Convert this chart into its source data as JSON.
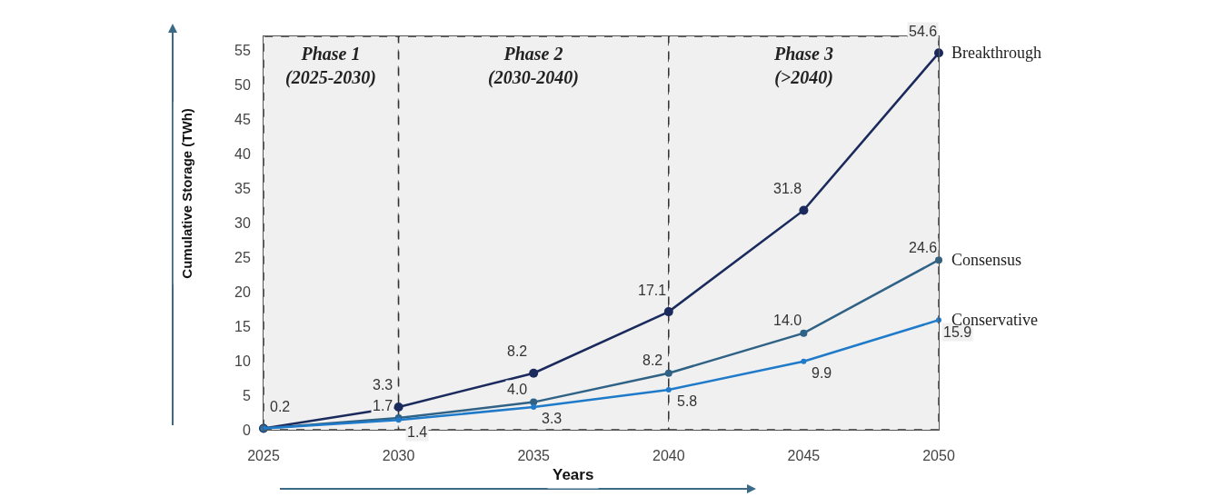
{
  "chart_data": {
    "type": "line",
    "xlabel": "Years",
    "ylabel": "Cumulative Storage (TWh)",
    "x": [
      2025,
      2030,
      2035,
      2040,
      2045,
      2050
    ],
    "xlim": [
      2025,
      2050
    ],
    "xticks": [
      2025,
      2030,
      2035,
      2040,
      2045,
      2050
    ],
    "ylim": [
      0,
      57
    ],
    "yticks": [
      0,
      5,
      10,
      15,
      20,
      25,
      30,
      35,
      40,
      45,
      50,
      55
    ],
    "grid": false,
    "legend": false,
    "marker": "circle",
    "line_style": "solid",
    "series": [
      {
        "name": "Breakthrough",
        "color": "#1b2a5c",
        "values": [
          0.2,
          3.3,
          8.2,
          17.1,
          31.8,
          54.6
        ],
        "value_labels": [
          "0.2",
          "3.3",
          "8.2",
          "17.1",
          "31.8",
          "54.6"
        ]
      },
      {
        "name": "Consensus",
        "color": "#2f6285",
        "values": [
          0.2,
          1.7,
          4.0,
          8.2,
          14.0,
          24.6
        ],
        "value_labels": [
          null,
          "1.7",
          "4.0",
          "8.2",
          "14.0",
          "24.6"
        ]
      },
      {
        "name": "Conservative",
        "color": "#1f7bc9",
        "values": [
          0.2,
          1.4,
          3.3,
          5.8,
          9.9,
          15.9
        ],
        "value_labels": [
          null,
          "1.4",
          "3.3",
          "5.8",
          "9.9",
          "15.9"
        ]
      }
    ],
    "bands": [
      {
        "axis": "x",
        "from": 2025,
        "to": 2030,
        "label": "Phase 1 (2025-2030)",
        "color": "#f0f0f0"
      },
      {
        "axis": "x",
        "from": 2030,
        "to": 2040,
        "label": "Phase 2 (2030-2040)",
        "color": "#f0f0f0"
      },
      {
        "axis": "x",
        "from": 2040,
        "to": 2050,
        "label": "Phase 3 (>2040)",
        "color": "#f0f0f0"
      }
    ]
  }
}
